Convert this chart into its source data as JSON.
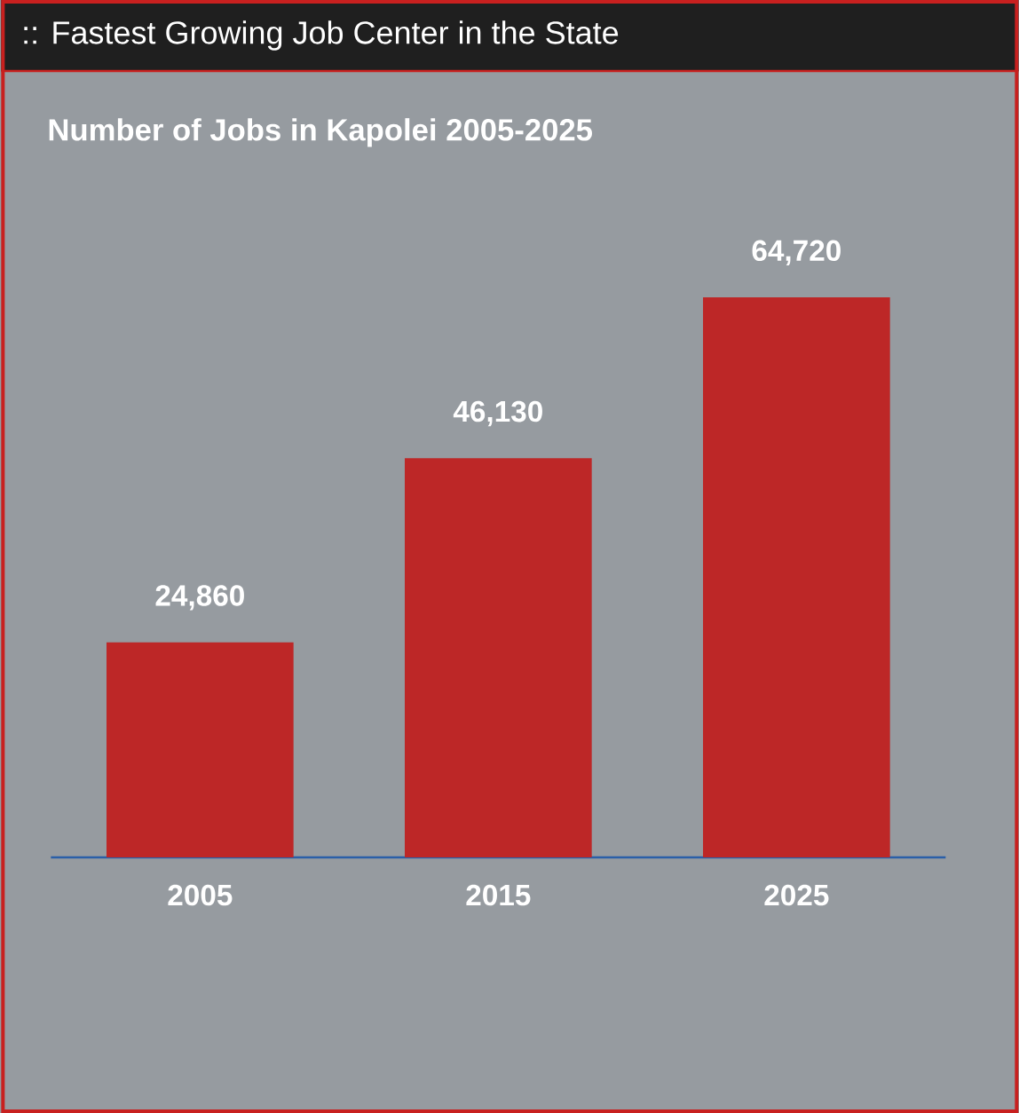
{
  "chart_data": {
    "type": "bar",
    "title": ":: Fastest Growing Job Center in the State",
    "subtitle": "Number of Jobs in Kapolei 2005-2025",
    "categories": [
      "2005",
      "2015",
      "2025"
    ],
    "values": [
      24860,
      46130,
      64720
    ],
    "value_labels": [
      "24,860",
      "46,130",
      "64,720"
    ],
    "color": "#bd2727"
  }
}
